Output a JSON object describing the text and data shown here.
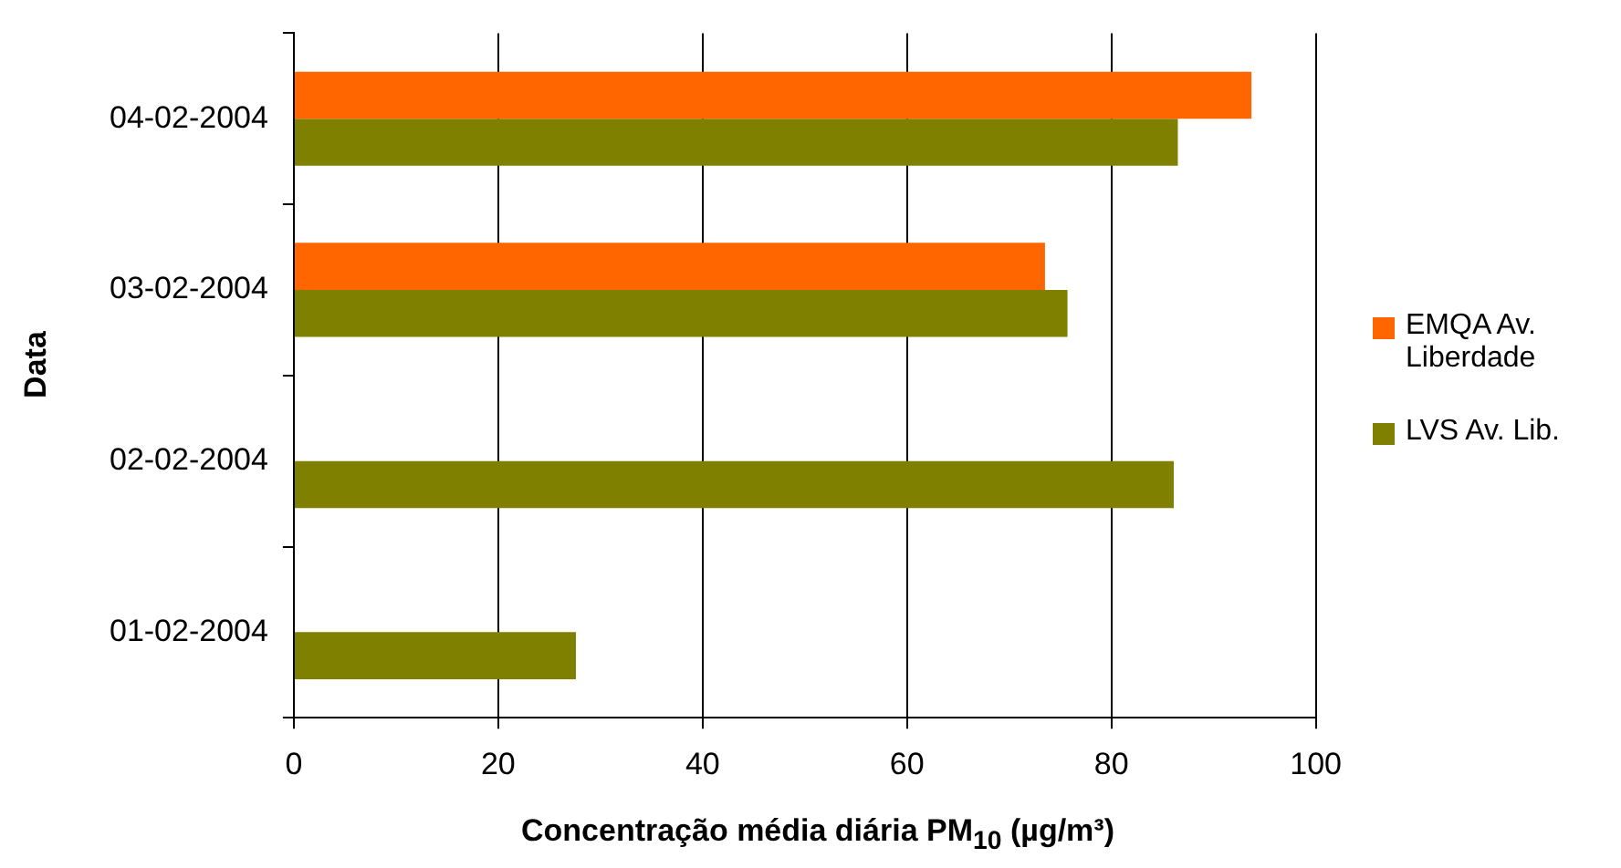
{
  "chart_data": {
    "type": "bar",
    "orientation": "horizontal",
    "xlabel": "Concentração média diária PM$_{10}$ (µg/m³)",
    "ylabel": "Data",
    "categories": [
      "04-02-2004",
      "03-02-2004",
      "02-02-2004",
      "01-02-2004"
    ],
    "series": [
      {
        "name": "EMQA Av. Liberdade",
        "color": "#ff6600",
        "values": [
          93.7,
          73.5,
          null,
          null
        ]
      },
      {
        "name": "LVS Av. Lib.",
        "color": "#808000",
        "values": [
          86.5,
          75.7,
          86.1,
          27.6
        ]
      }
    ],
    "xlim": [
      0,
      100
    ],
    "xticks": [
      0,
      20,
      40,
      60,
      80,
      100
    ],
    "grid": "x",
    "legend": "right"
  }
}
